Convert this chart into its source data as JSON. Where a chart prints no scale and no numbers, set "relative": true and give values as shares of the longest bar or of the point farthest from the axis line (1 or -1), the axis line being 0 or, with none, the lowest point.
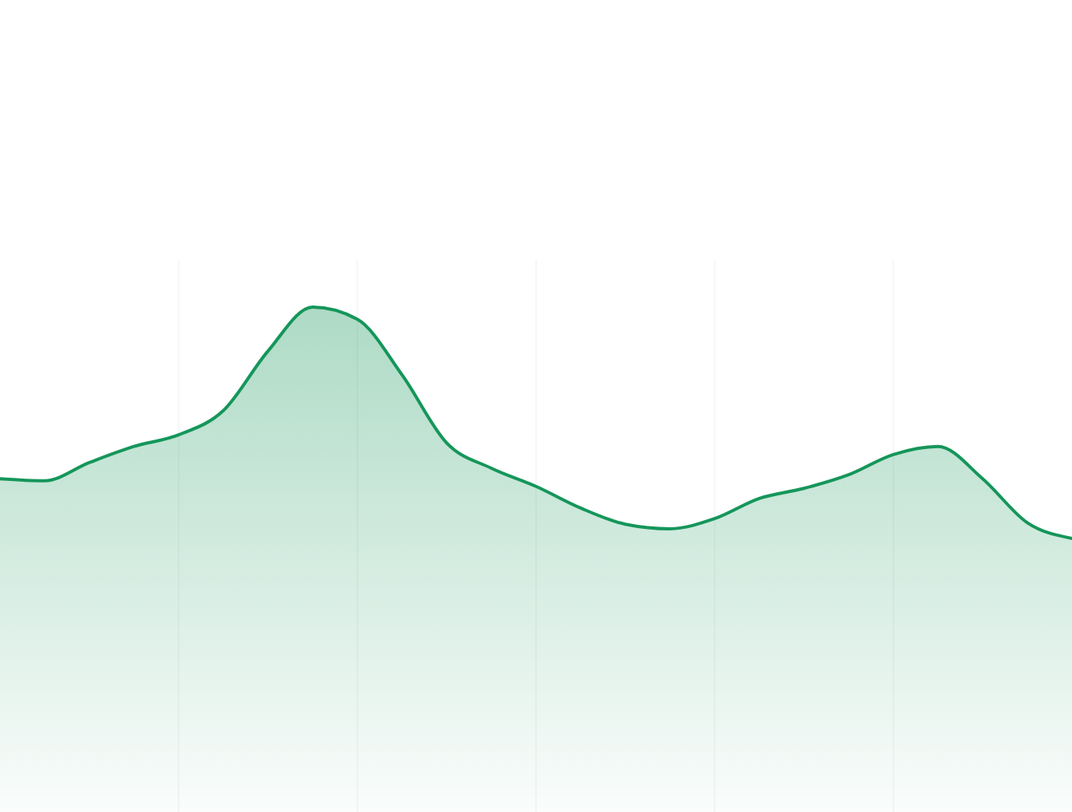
{
  "chart_data": {
    "type": "area",
    "relative": true,
    "grid": "x",
    "categories": [
      null,
      null,
      null,
      null,
      null,
      null,
      null,
      null,
      null,
      null,
      null,
      null,
      null,
      null,
      null,
      null,
      null,
      null,
      null,
      null,
      null,
      null,
      null,
      null,
      null
    ],
    "series": [
      {
        "color": "#15965a",
        "values": [
          0.66,
          0.656,
          0.692,
          0.724,
          0.747,
          0.795,
          0.913,
          1,
          0.976,
          0.866,
          0.731,
          0.681,
          0.645,
          0.602,
          0.57,
          0.561,
          0.581,
          0.621,
          0.641,
          0.668,
          0.708,
          0.724,
          0.66,
          0.573,
          0.542
        ]
      }
    ]
  }
}
